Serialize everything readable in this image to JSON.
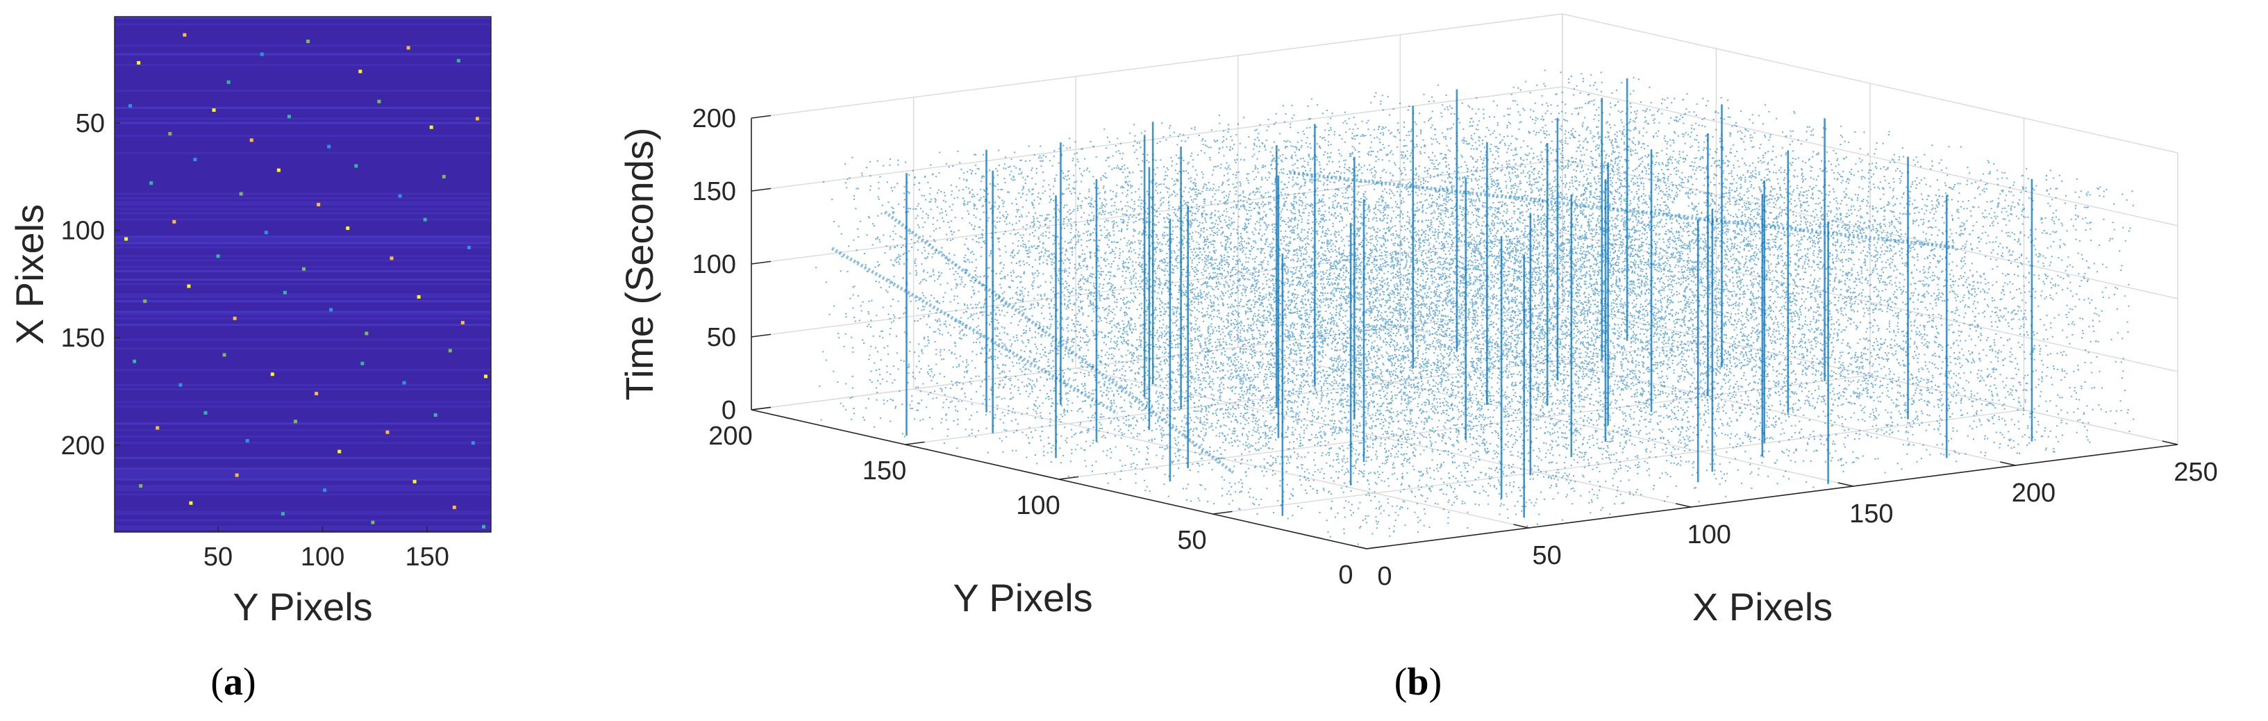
{
  "figure": {
    "panel_a_label": {
      "open": "(",
      "letter": "a",
      "close": ")"
    },
    "panel_b_label": {
      "open": "(",
      "letter": "b",
      "close": ")"
    }
  },
  "chart_data": [
    {
      "type": "heatmap",
      "panel": "a",
      "xlabel": "Y Pixels",
      "ylabel": "X Pixels",
      "xlim": [
        0.5,
        180.5
      ],
      "ylim": [
        0.5,
        240.5
      ],
      "x_ticks": [
        "50",
        "100",
        "150"
      ],
      "y_ticks": [
        "50",
        "100",
        "150",
        "200"
      ],
      "y_direction": "reversed",
      "colormap": "parula",
      "background_color": "#3e26a8",
      "hot_pixel_colors": [
        "#f9fb0e",
        "#fbbc39",
        "#33b7a0",
        "#2c96da",
        "#7dba58"
      ],
      "hot_pixels": [
        [
          12,
          22
        ],
        [
          34,
          9
        ],
        [
          55,
          31
        ],
        [
          71,
          18
        ],
        [
          93,
          12
        ],
        [
          118,
          26
        ],
        [
          141,
          15
        ],
        [
          165,
          21
        ],
        [
          8,
          42
        ],
        [
          27,
          55
        ],
        [
          48,
          44
        ],
        [
          66,
          58
        ],
        [
          84,
          47
        ],
        [
          103,
          61
        ],
        [
          127,
          40
        ],
        [
          152,
          52
        ],
        [
          174,
          48
        ],
        [
          18,
          78
        ],
        [
          39,
          67
        ],
        [
          61,
          83
        ],
        [
          79,
          72
        ],
        [
          98,
          88
        ],
        [
          116,
          70
        ],
        [
          137,
          84
        ],
        [
          158,
          75
        ],
        [
          6,
          104
        ],
        [
          29,
          96
        ],
        [
          50,
          112
        ],
        [
          73,
          101
        ],
        [
          91,
          118
        ],
        [
          112,
          99
        ],
        [
          133,
          113
        ],
        [
          149,
          95
        ],
        [
          170,
          108
        ],
        [
          15,
          133
        ],
        [
          36,
          126
        ],
        [
          58,
          141
        ],
        [
          82,
          129
        ],
        [
          104,
          137
        ],
        [
          121,
          148
        ],
        [
          146,
          131
        ],
        [
          167,
          143
        ],
        [
          10,
          161
        ],
        [
          32,
          172
        ],
        [
          53,
          158
        ],
        [
          76,
          167
        ],
        [
          97,
          176
        ],
        [
          119,
          162
        ],
        [
          139,
          171
        ],
        [
          161,
          156
        ],
        [
          178,
          168
        ],
        [
          21,
          192
        ],
        [
          44,
          185
        ],
        [
          64,
          198
        ],
        [
          87,
          189
        ],
        [
          108,
          203
        ],
        [
          131,
          194
        ],
        [
          154,
          186
        ],
        [
          172,
          199
        ],
        [
          13,
          219
        ],
        [
          37,
          227
        ],
        [
          59,
          214
        ],
        [
          81,
          232
        ],
        [
          101,
          221
        ],
        [
          124,
          236
        ],
        [
          144,
          217
        ],
        [
          163,
          229
        ],
        [
          177,
          238
        ]
      ]
    },
    {
      "type": "scatter",
      "panel": "b",
      "projection": "3d",
      "xlabel": "X Pixels",
      "ylabel": "Y Pixels",
      "zlabel": "Time (Seconds)",
      "xlim": [
        0,
        250
      ],
      "ylim": [
        0,
        200
      ],
      "zlim": [
        0,
        200
      ],
      "x_ticks": [
        "0",
        "50",
        "100",
        "150",
        "200",
        "250"
      ],
      "y_ticks": [
        "0",
        "50",
        "100",
        "150",
        "200"
      ],
      "z_ticks": [
        "0",
        "50",
        "100",
        "150",
        "200"
      ],
      "grid": true,
      "marker_color": "#0072bd",
      "data_extent": {
        "x": [
          0,
          240
        ],
        "y": [
          0,
          180
        ],
        "z": [
          0,
          180
        ]
      },
      "hot_pixel_columns": [
        [
          8,
          158
        ],
        [
          18,
          120
        ],
        [
          27,
          150
        ],
        [
          35,
          95
        ],
        [
          44,
          170
        ],
        [
          52,
          60
        ],
        [
          61,
          135
        ],
        [
          70,
          30
        ],
        [
          79,
          112
        ],
        [
          88,
          165
        ],
        [
          96,
          48
        ],
        [
          105,
          140
        ],
        [
          114,
          88
        ],
        [
          123,
          22
        ],
        [
          131,
          155
        ],
        [
          140,
          70
        ],
        [
          149,
          118
        ],
        [
          158,
          38
        ],
        [
          166,
          160
        ],
        [
          175,
          92
        ],
        [
          184,
          132
        ],
        [
          193,
          15
        ],
        [
          201,
          75
        ],
        [
          210,
          145
        ],
        [
          219,
          55
        ],
        [
          228,
          125
        ],
        [
          236,
          100
        ],
        [
          12,
          40
        ],
        [
          58,
          10
        ],
        [
          101,
          176
        ],
        [
          147,
          5
        ],
        [
          189,
          170
        ],
        [
          224,
          20
        ],
        [
          75,
          80
        ],
        [
          120,
          60
        ],
        [
          160,
          110
        ],
        [
          40,
          130
        ],
        [
          200,
          100
        ],
        [
          85,
          150
        ],
        [
          135,
          30
        ],
        [
          20,
          85
        ],
        [
          110,
          120
        ],
        [
          170,
          50
        ],
        [
          232,
          160
        ],
        [
          65,
          168
        ],
        [
          155,
          85
        ]
      ],
      "streaks": [
        {
          "y": [
            165,
            75
          ],
          "x": [
            8,
            30
          ],
          "z": [
            150,
            8
          ]
        },
        {
          "y": [
            178,
            100
          ],
          "x": [
            4,
            18
          ],
          "z": [
            120,
            40
          ]
        },
        {
          "y": [
            120,
            20
          ],
          "x": [
            90,
            200
          ],
          "z": [
            175,
            140
          ]
        }
      ]
    }
  ]
}
